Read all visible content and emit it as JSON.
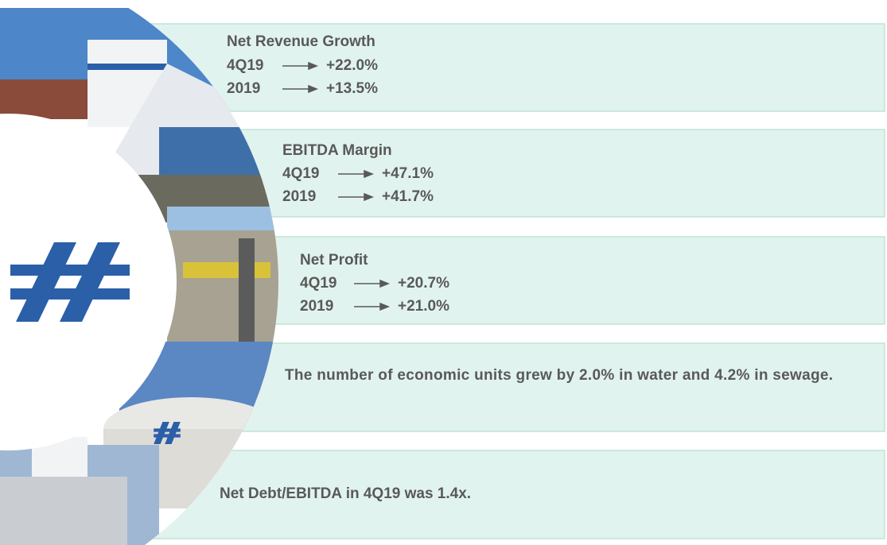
{
  "panels": [
    {
      "title": "Net Revenue Growth",
      "rows": [
        {
          "period": "4Q19",
          "value": "+22.0%"
        },
        {
          "period": "2019",
          "value": "+13.5%"
        }
      ]
    },
    {
      "title": "EBITDA Margin",
      "rows": [
        {
          "period": "4Q19",
          "value": "+47.1%"
        },
        {
          "period": "2019",
          "value": "+41.7%"
        }
      ]
    },
    {
      "title": "Net Profit",
      "rows": [
        {
          "period": "4Q19",
          "value": "+20.7%"
        },
        {
          "period": "2019",
          "value": "+21.0%"
        }
      ]
    }
  ],
  "notes": [
    "The number of economic units grew by 2.0% in water and 4.2% in sewage.",
    "Net Debt/EBITDA in 4Q19 was 1.4x."
  ]
}
